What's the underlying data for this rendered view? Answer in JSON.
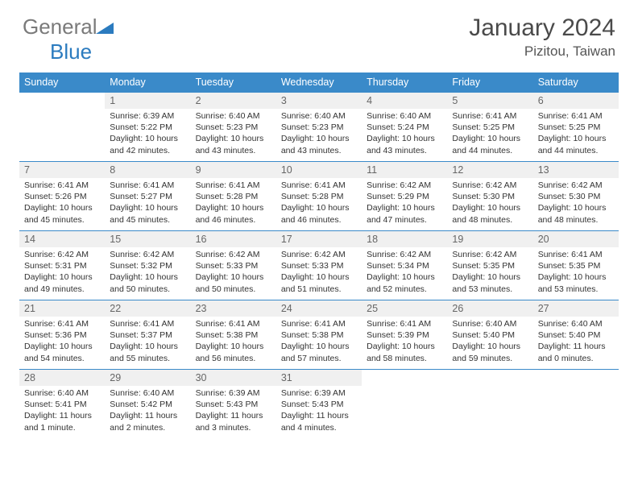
{
  "logo": {
    "text1": "General",
    "text2": "Blue"
  },
  "title": "January 2024",
  "location": "Pizitou, Taiwan",
  "colors": {
    "header_bg": "#3a8ac9",
    "daynum_bg": "#f0f0f0",
    "border": "#3a8ac9",
    "logo_gray": "#7a7a7a",
    "logo_blue": "#2b7bbf"
  },
  "dow": [
    "Sunday",
    "Monday",
    "Tuesday",
    "Wednesday",
    "Thursday",
    "Friday",
    "Saturday"
  ],
  "weeks": [
    [
      null,
      {
        "n": "1",
        "sr": "Sunrise: 6:39 AM",
        "ss": "Sunset: 5:22 PM",
        "dl": "Daylight: 10 hours and 42 minutes."
      },
      {
        "n": "2",
        "sr": "Sunrise: 6:40 AM",
        "ss": "Sunset: 5:23 PM",
        "dl": "Daylight: 10 hours and 43 minutes."
      },
      {
        "n": "3",
        "sr": "Sunrise: 6:40 AM",
        "ss": "Sunset: 5:23 PM",
        "dl": "Daylight: 10 hours and 43 minutes."
      },
      {
        "n": "4",
        "sr": "Sunrise: 6:40 AM",
        "ss": "Sunset: 5:24 PM",
        "dl": "Daylight: 10 hours and 43 minutes."
      },
      {
        "n": "5",
        "sr": "Sunrise: 6:41 AM",
        "ss": "Sunset: 5:25 PM",
        "dl": "Daylight: 10 hours and 44 minutes."
      },
      {
        "n": "6",
        "sr": "Sunrise: 6:41 AM",
        "ss": "Sunset: 5:25 PM",
        "dl": "Daylight: 10 hours and 44 minutes."
      }
    ],
    [
      {
        "n": "7",
        "sr": "Sunrise: 6:41 AM",
        "ss": "Sunset: 5:26 PM",
        "dl": "Daylight: 10 hours and 45 minutes."
      },
      {
        "n": "8",
        "sr": "Sunrise: 6:41 AM",
        "ss": "Sunset: 5:27 PM",
        "dl": "Daylight: 10 hours and 45 minutes."
      },
      {
        "n": "9",
        "sr": "Sunrise: 6:41 AM",
        "ss": "Sunset: 5:28 PM",
        "dl": "Daylight: 10 hours and 46 minutes."
      },
      {
        "n": "10",
        "sr": "Sunrise: 6:41 AM",
        "ss": "Sunset: 5:28 PM",
        "dl": "Daylight: 10 hours and 46 minutes."
      },
      {
        "n": "11",
        "sr": "Sunrise: 6:42 AM",
        "ss": "Sunset: 5:29 PM",
        "dl": "Daylight: 10 hours and 47 minutes."
      },
      {
        "n": "12",
        "sr": "Sunrise: 6:42 AM",
        "ss": "Sunset: 5:30 PM",
        "dl": "Daylight: 10 hours and 48 minutes."
      },
      {
        "n": "13",
        "sr": "Sunrise: 6:42 AM",
        "ss": "Sunset: 5:30 PM",
        "dl": "Daylight: 10 hours and 48 minutes."
      }
    ],
    [
      {
        "n": "14",
        "sr": "Sunrise: 6:42 AM",
        "ss": "Sunset: 5:31 PM",
        "dl": "Daylight: 10 hours and 49 minutes."
      },
      {
        "n": "15",
        "sr": "Sunrise: 6:42 AM",
        "ss": "Sunset: 5:32 PM",
        "dl": "Daylight: 10 hours and 50 minutes."
      },
      {
        "n": "16",
        "sr": "Sunrise: 6:42 AM",
        "ss": "Sunset: 5:33 PM",
        "dl": "Daylight: 10 hours and 50 minutes."
      },
      {
        "n": "17",
        "sr": "Sunrise: 6:42 AM",
        "ss": "Sunset: 5:33 PM",
        "dl": "Daylight: 10 hours and 51 minutes."
      },
      {
        "n": "18",
        "sr": "Sunrise: 6:42 AM",
        "ss": "Sunset: 5:34 PM",
        "dl": "Daylight: 10 hours and 52 minutes."
      },
      {
        "n": "19",
        "sr": "Sunrise: 6:42 AM",
        "ss": "Sunset: 5:35 PM",
        "dl": "Daylight: 10 hours and 53 minutes."
      },
      {
        "n": "20",
        "sr": "Sunrise: 6:41 AM",
        "ss": "Sunset: 5:35 PM",
        "dl": "Daylight: 10 hours and 53 minutes."
      }
    ],
    [
      {
        "n": "21",
        "sr": "Sunrise: 6:41 AM",
        "ss": "Sunset: 5:36 PM",
        "dl": "Daylight: 10 hours and 54 minutes."
      },
      {
        "n": "22",
        "sr": "Sunrise: 6:41 AM",
        "ss": "Sunset: 5:37 PM",
        "dl": "Daylight: 10 hours and 55 minutes."
      },
      {
        "n": "23",
        "sr": "Sunrise: 6:41 AM",
        "ss": "Sunset: 5:38 PM",
        "dl": "Daylight: 10 hours and 56 minutes."
      },
      {
        "n": "24",
        "sr": "Sunrise: 6:41 AM",
        "ss": "Sunset: 5:38 PM",
        "dl": "Daylight: 10 hours and 57 minutes."
      },
      {
        "n": "25",
        "sr": "Sunrise: 6:41 AM",
        "ss": "Sunset: 5:39 PM",
        "dl": "Daylight: 10 hours and 58 minutes."
      },
      {
        "n": "26",
        "sr": "Sunrise: 6:40 AM",
        "ss": "Sunset: 5:40 PM",
        "dl": "Daylight: 10 hours and 59 minutes."
      },
      {
        "n": "27",
        "sr": "Sunrise: 6:40 AM",
        "ss": "Sunset: 5:40 PM",
        "dl": "Daylight: 11 hours and 0 minutes."
      }
    ],
    [
      {
        "n": "28",
        "sr": "Sunrise: 6:40 AM",
        "ss": "Sunset: 5:41 PM",
        "dl": "Daylight: 11 hours and 1 minute."
      },
      {
        "n": "29",
        "sr": "Sunrise: 6:40 AM",
        "ss": "Sunset: 5:42 PM",
        "dl": "Daylight: 11 hours and 2 minutes."
      },
      {
        "n": "30",
        "sr": "Sunrise: 6:39 AM",
        "ss": "Sunset: 5:43 PM",
        "dl": "Daylight: 11 hours and 3 minutes."
      },
      {
        "n": "31",
        "sr": "Sunrise: 6:39 AM",
        "ss": "Sunset: 5:43 PM",
        "dl": "Daylight: 11 hours and 4 minutes."
      },
      null,
      null,
      null
    ]
  ]
}
